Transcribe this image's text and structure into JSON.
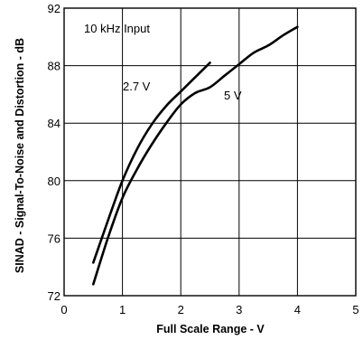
{
  "chart_data": {
    "type": "line",
    "xlabel": "Full Scale Range - V",
    "ylabel": "SINAD - Signal-To-Noise and Distortion - dB",
    "xlim": [
      0,
      5
    ],
    "ylim": [
      72,
      92
    ],
    "xticks": [
      "0",
      "1",
      "2",
      "3",
      "4",
      "5"
    ],
    "yticks": [
      "72",
      "76",
      "80",
      "84",
      "88",
      "92"
    ],
    "grid": true,
    "annotations": [
      "10 kHz Input"
    ],
    "series": [
      {
        "name": "2.7 V",
        "x": [
          0.5,
          0.75,
          1.0,
          1.25,
          1.5,
          1.75,
          2.0,
          2.25,
          2.5
        ],
        "y": [
          74.3,
          77.2,
          80.0,
          82.2,
          83.9,
          85.2,
          86.2,
          87.2,
          88.2
        ]
      },
      {
        "name": "5 V",
        "x": [
          0.5,
          0.75,
          1.0,
          1.25,
          1.5,
          1.75,
          2.0,
          2.25,
          2.5,
          2.75,
          3.0,
          3.25,
          3.5,
          3.75,
          4.0
        ],
        "y": [
          72.8,
          76.0,
          78.8,
          80.8,
          82.5,
          84.0,
          85.3,
          86.1,
          86.5,
          87.3,
          88.1,
          88.9,
          89.4,
          90.1,
          90.7
        ]
      }
    ]
  }
}
